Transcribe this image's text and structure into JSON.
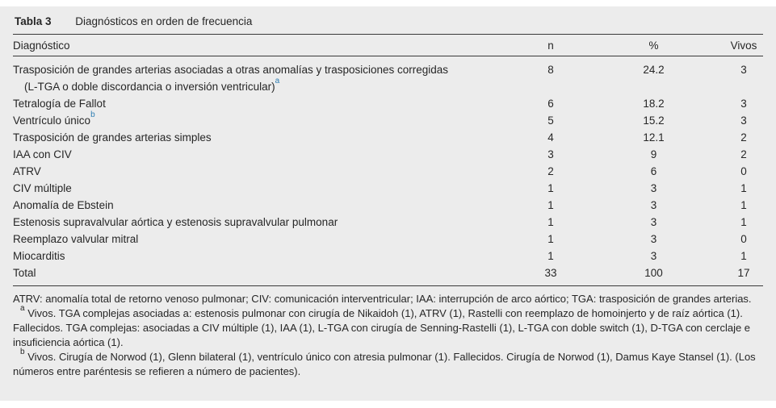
{
  "colors": {
    "panel_bg": "#ececec",
    "text": "#262626",
    "rule": "#3a3a3a",
    "footnote_link": "#2e7eb3"
  },
  "table": {
    "label": "Tabla 3",
    "title": "Diagnósticos en orden de frecuencia",
    "columns": {
      "diagnosis": "Diagnóstico",
      "n": "n",
      "pct": "%",
      "vivos": "Vivos"
    },
    "rows": [
      {
        "diagnosis": "Trasposición de grandes arterias asociadas a otras anomalías y trasposiciones corregidas (L-TGA o doble discordancia o inversión ventricular)",
        "ref": "a",
        "n": "8",
        "pct": "24.2",
        "vivos": "3"
      },
      {
        "diagnosis": "Tetralogía de Fallot",
        "ref": "",
        "n": "6",
        "pct": "18.2",
        "vivos": "3"
      },
      {
        "diagnosis": "Ventrículo único",
        "ref": "b",
        "n": "5",
        "pct": "15.2",
        "vivos": "3"
      },
      {
        "diagnosis": "Trasposición de grandes arterias simples",
        "ref": "",
        "n": "4",
        "pct": "12.1",
        "vivos": "2"
      },
      {
        "diagnosis": "IAA con CIV",
        "ref": "",
        "n": "3",
        "pct": "9",
        "vivos": "2"
      },
      {
        "diagnosis": "ATRV",
        "ref": "",
        "n": "2",
        "pct": "6",
        "vivos": "0"
      },
      {
        "diagnosis": "CIV múltiple",
        "ref": "",
        "n": "1",
        "pct": "3",
        "vivos": "1"
      },
      {
        "diagnosis": "Anomalía de Ebstein",
        "ref": "",
        "n": "1",
        "pct": "3",
        "vivos": "1"
      },
      {
        "diagnosis": "Estenosis supravalvular aórtica y estenosis supravalvular pulmonar",
        "ref": "",
        "n": "1",
        "pct": "3",
        "vivos": "1"
      },
      {
        "diagnosis": "Reemplazo valvular mitral",
        "ref": "",
        "n": "1",
        "pct": "3",
        "vivos": "0"
      },
      {
        "diagnosis": "Miocarditis",
        "ref": "",
        "n": "1",
        "pct": "3",
        "vivos": "1"
      },
      {
        "diagnosis": "Total",
        "ref": "",
        "n": "33",
        "pct": "100",
        "vivos": "17"
      }
    ],
    "footnotes": {
      "abbreviations": "ATRV: anomalía total de retorno venoso pulmonar; CIV: comunicación interventricular; IAA: interrupción de arco aórtico; TGA: trasposición de grandes arterias.",
      "a": {
        "marker": "a",
        "text": "Vivos. TGA complejas asociadas a: estenosis pulmonar con cirugía de Nikaidoh (1), ATRV (1), Rastelli con reemplazo de homoinjerto y de raíz aórtica (1). Fallecidos. TGA complejas: asociadas a CIV múltiple (1), IAA (1), L-TGA con cirugía de Senning-Rastelli (1), L-TGA con doble switch (1), D-TGA con cerclaje e insuficiencia aórtica (1)."
      },
      "b": {
        "marker": "b",
        "text": "Vivos. Cirugía de Norwod (1), Glenn bilateral (1), ventrículo único con atresia pulmonar (1). Fallecidos. Cirugía de Norwod (1), Damus Kaye Stansel (1). (Los números entre paréntesis se refieren a número de pacientes)."
      }
    }
  }
}
